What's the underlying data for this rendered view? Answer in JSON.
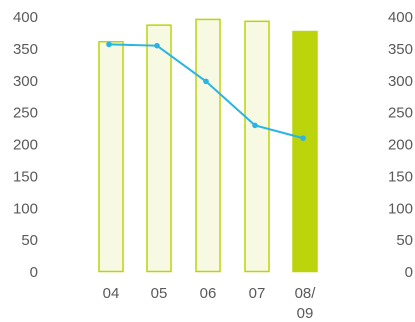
{
  "chart_data": {
    "type": "bar",
    "categories": [
      [
        "04"
      ],
      [
        "05"
      ],
      [
        "06"
      ],
      [
        "07"
      ],
      [
        "08/",
        "09"
      ]
    ],
    "bars": [
      {
        "value": 362,
        "highlight": false
      },
      {
        "value": 388,
        "highlight": false
      },
      {
        "value": 397,
        "highlight": false
      },
      {
        "value": 394,
        "highlight": false
      },
      {
        "value": 378,
        "highlight": true
      }
    ],
    "line": {
      "values": [
        357,
        355,
        299,
        230,
        210
      ]
    },
    "y_ticks": [
      "400",
      "350",
      "300",
      "250",
      "200",
      "150",
      "100",
      "50",
      "0"
    ],
    "ylim": [
      0,
      400
    ],
    "right_axis_ticks": [
      "400",
      "350",
      "300",
      "250",
      "200",
      "150",
      "100",
      "50",
      "0"
    ],
    "grid": false,
    "colors": {
      "bar_fill": "#f7f9e3",
      "bar_outline": "#bcd40c",
      "bar_highlight": "#bcd40c",
      "line": "#2ab4e4",
      "text": "#5a5a5a"
    }
  }
}
